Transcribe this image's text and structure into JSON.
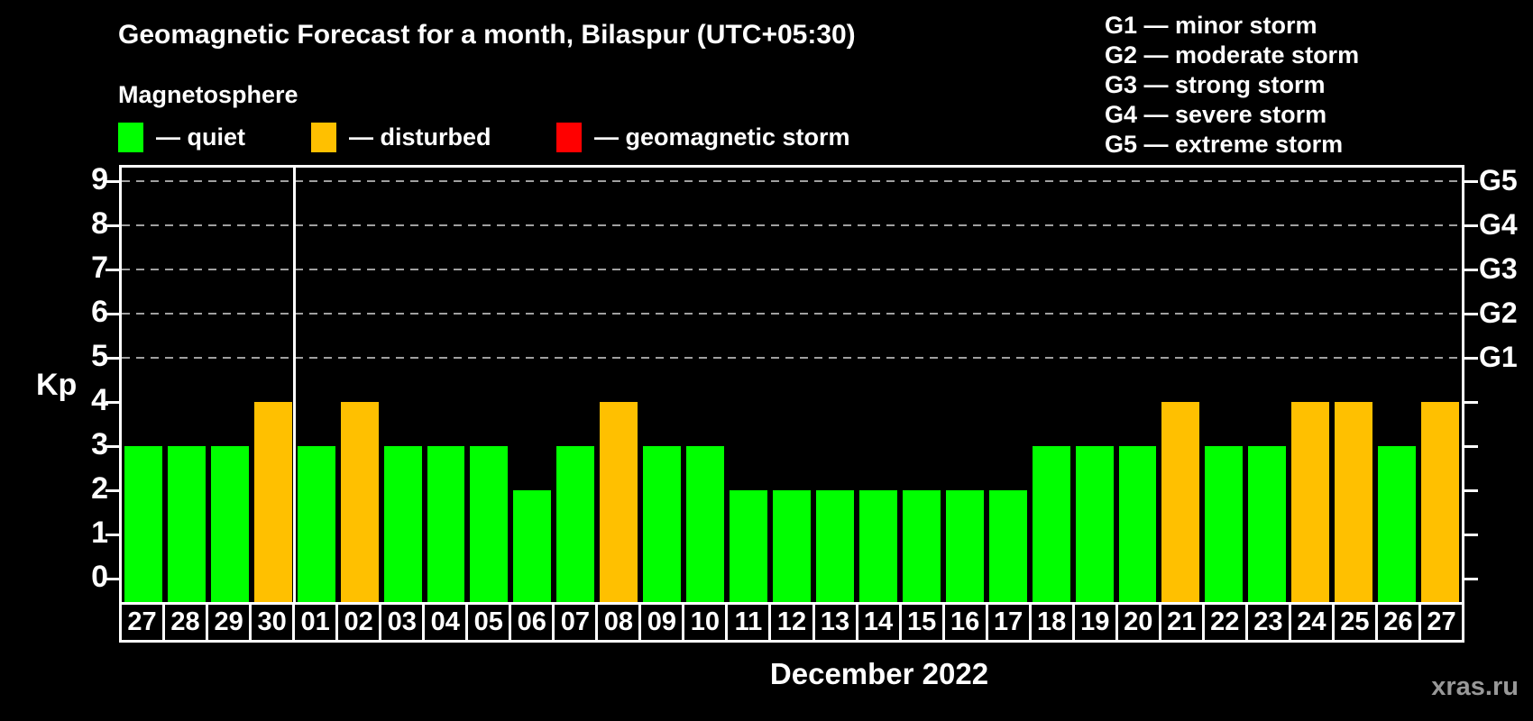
{
  "header": {
    "title": "Geomagnetic Forecast for a month, Bilaspur (UTC+05:30)",
    "subtitle": "Magnetosphere"
  },
  "legend": {
    "items": [
      {
        "name": "quiet",
        "color": "#00ff00",
        "label": "— quiet"
      },
      {
        "name": "disturbed",
        "color": "#ffc000",
        "label": "— disturbed"
      },
      {
        "name": "storm",
        "color": "#ff0000",
        "label": "— geomagnetic storm"
      }
    ]
  },
  "g_legend": {
    "lines": [
      "G1 — minor storm",
      "G2 — moderate storm",
      "G3 — strong storm",
      "G4 — severe storm",
      "G5 — extreme storm"
    ]
  },
  "axes": {
    "kp_label": "Kp",
    "y_ticks": [
      9,
      8,
      7,
      6,
      5,
      4,
      3,
      2,
      1,
      0
    ],
    "g_ticks": [
      {
        "kp": 9,
        "label": "G5"
      },
      {
        "kp": 8,
        "label": "G4"
      },
      {
        "kp": 7,
        "label": "G3"
      },
      {
        "kp": 6,
        "label": "G2"
      },
      {
        "kp": 5,
        "label": "G1"
      }
    ],
    "month_label": "December 2022"
  },
  "watermark": "xras.ru",
  "chart_data": {
    "type": "bar",
    "title": "Geomagnetic Forecast for a month, Bilaspur (UTC+05:30)",
    "xlabel": "December 2022",
    "ylabel": "Kp",
    "ylim": [
      0,
      9
    ],
    "gridlines_at": [
      5,
      6,
      7,
      8,
      9
    ],
    "legend_position": "top-left",
    "month_separator_after_index": 3,
    "categories": [
      "27",
      "28",
      "29",
      "30",
      "01",
      "02",
      "03",
      "04",
      "05",
      "06",
      "07",
      "08",
      "09",
      "10",
      "11",
      "12",
      "13",
      "14",
      "15",
      "16",
      "17",
      "18",
      "19",
      "20",
      "21",
      "22",
      "23",
      "24",
      "25",
      "26",
      "27"
    ],
    "values": [
      3,
      3,
      3,
      4,
      3,
      4,
      3,
      3,
      3,
      2,
      3,
      4,
      3,
      3,
      2,
      2,
      2,
      2,
      2,
      2,
      2,
      3,
      3,
      3,
      4,
      3,
      3,
      4,
      4,
      3,
      4
    ],
    "statuses": [
      "quiet",
      "quiet",
      "quiet",
      "disturbed",
      "quiet",
      "disturbed",
      "quiet",
      "quiet",
      "quiet",
      "quiet",
      "quiet",
      "disturbed",
      "quiet",
      "quiet",
      "quiet",
      "quiet",
      "quiet",
      "quiet",
      "quiet",
      "quiet",
      "quiet",
      "quiet",
      "quiet",
      "quiet",
      "disturbed",
      "quiet",
      "quiet",
      "disturbed",
      "disturbed",
      "quiet",
      "disturbed"
    ],
    "colors": {
      "quiet": "#00ff00",
      "disturbed": "#ffc000",
      "storm": "#ff0000"
    }
  }
}
